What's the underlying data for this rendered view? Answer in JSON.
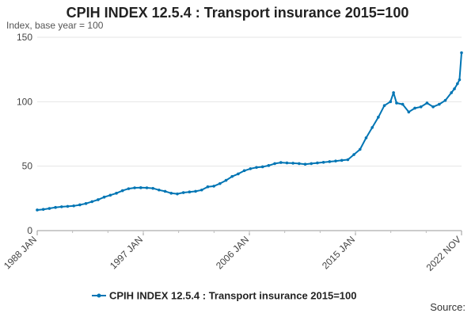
{
  "chart_data": {
    "type": "line",
    "title": "CPIH INDEX 12.5.4 : Transport insurance 2015=100",
    "ylabel": "Index, base year = 100",
    "xlabel": "",
    "ylim": [
      0,
      150
    ],
    "y_ticks": [
      0,
      50,
      100,
      150
    ],
    "x_tick_labels": [
      "1988 JAN",
      "1997 JAN",
      "2006 JAN",
      "2015 JAN",
      "2022 NOV"
    ],
    "x_range": [
      "1988-01",
      "2022-11"
    ],
    "grid": "horizontal",
    "legend_position": "bottom",
    "color": "#0075b4",
    "series": [
      {
        "name": "CPIH INDEX 12.5.4 : Transport insurance 2015=100",
        "points": [
          [
            "1988-01",
            16.0
          ],
          [
            "1988-07",
            16.5
          ],
          [
            "1989-01",
            17.2
          ],
          [
            "1989-07",
            18.0
          ],
          [
            "1990-01",
            18.5
          ],
          [
            "1990-07",
            18.8
          ],
          [
            "1991-01",
            19.2
          ],
          [
            "1991-07",
            20.0
          ],
          [
            "1992-01",
            21.0
          ],
          [
            "1992-07",
            22.5
          ],
          [
            "1993-01",
            24.0
          ],
          [
            "1993-07",
            26.0
          ],
          [
            "1994-01",
            27.5
          ],
          [
            "1994-07",
            29.0
          ],
          [
            "1995-01",
            31.0
          ],
          [
            "1995-07",
            32.5
          ],
          [
            "1996-01",
            33.2
          ],
          [
            "1996-07",
            33.3
          ],
          [
            "1997-01",
            33.2
          ],
          [
            "1997-07",
            32.8
          ],
          [
            "1998-01",
            31.5
          ],
          [
            "1998-07",
            30.5
          ],
          [
            "1999-01",
            29.0
          ],
          [
            "1999-07",
            28.5
          ],
          [
            "2000-01",
            29.5
          ],
          [
            "2000-07",
            30.0
          ],
          [
            "2001-01",
            30.5
          ],
          [
            "2001-07",
            31.5
          ],
          [
            "2002-01",
            34.0
          ],
          [
            "2002-07",
            34.5
          ],
          [
            "2003-01",
            36.5
          ],
          [
            "2003-07",
            39.0
          ],
          [
            "2004-01",
            42.0
          ],
          [
            "2004-07",
            44.0
          ],
          [
            "2005-01",
            46.5
          ],
          [
            "2005-07",
            48.0
          ],
          [
            "2006-01",
            49.0
          ],
          [
            "2006-07",
            49.5
          ],
          [
            "2007-01",
            50.5
          ],
          [
            "2007-07",
            52.0
          ],
          [
            "2008-01",
            52.8
          ],
          [
            "2008-07",
            52.5
          ],
          [
            "2009-01",
            52.3
          ],
          [
            "2009-07",
            52.0
          ],
          [
            "2010-01",
            51.5
          ],
          [
            "2010-07",
            52.0
          ],
          [
            "2011-01",
            52.5
          ],
          [
            "2011-07",
            53.0
          ],
          [
            "2012-01",
            53.5
          ],
          [
            "2012-07",
            54.0
          ],
          [
            "2013-01",
            54.5
          ],
          [
            "2013-07",
            55.0
          ],
          [
            "2014-01",
            59.0
          ],
          [
            "2014-07",
            63.0
          ],
          [
            "2015-01",
            72.0
          ],
          [
            "2015-07",
            80.0
          ],
          [
            "2016-01",
            88.0
          ],
          [
            "2016-07",
            97.0
          ],
          [
            "2017-01",
            100.0
          ],
          [
            "2017-04",
            107.0
          ],
          [
            "2017-07",
            99.0
          ],
          [
            "2018-01",
            98.0
          ],
          [
            "2018-07",
            92.0
          ],
          [
            "2019-01",
            95.0
          ],
          [
            "2019-07",
            96.0
          ],
          [
            "2020-01",
            99.0
          ],
          [
            "2020-07",
            96.0
          ],
          [
            "2021-01",
            98.0
          ],
          [
            "2021-07",
            101.0
          ],
          [
            "2022-01",
            107.0
          ],
          [
            "2022-04",
            110.0
          ],
          [
            "2022-07",
            114.0
          ],
          [
            "2022-09",
            117.0
          ],
          [
            "2022-11",
            138.0
          ]
        ]
      }
    ]
  }
}
